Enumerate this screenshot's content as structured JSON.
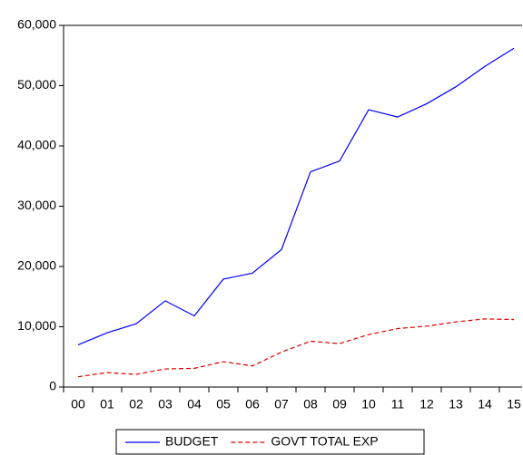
{
  "chart_data": {
    "type": "line",
    "categories": [
      "00",
      "01",
      "02",
      "03",
      "04",
      "05",
      "06",
      "07",
      "08",
      "09",
      "10",
      "11",
      "12",
      "13",
      "14",
      "15"
    ],
    "series": [
      {
        "name": "BUDGET",
        "color": "#0000ff",
        "dash": "solid",
        "values": [
          7000,
          9000,
          10500,
          14300,
          11800,
          17900,
          18900,
          22800,
          35700,
          37500,
          46000,
          44800,
          47000,
          49800,
          53200,
          56200
        ]
      },
      {
        "name": "GOVT TOTAL EXP",
        "color": "#dd0000",
        "dash": "dashed",
        "values": [
          1700,
          2400,
          2100,
          3000,
          3100,
          4200,
          3500,
          5800,
          7600,
          7200,
          8700,
          9700,
          10100,
          10800,
          11300,
          11200
        ]
      }
    ],
    "ylim": [
      0,
      60000
    ],
    "yticks": [
      0,
      {
        "value": 10000,
        "label": "10,000"
      },
      {
        "value": 20000,
        "label": "20,000"
      },
      {
        "value": 30000,
        "label": "30,000"
      },
      {
        "value": 40000,
        "label": "40,000"
      },
      {
        "value": 50000,
        "label": "50,000"
      },
      {
        "value": 60000,
        "label": "60,000"
      }
    ],
    "grid": false,
    "legend": "bottom"
  }
}
